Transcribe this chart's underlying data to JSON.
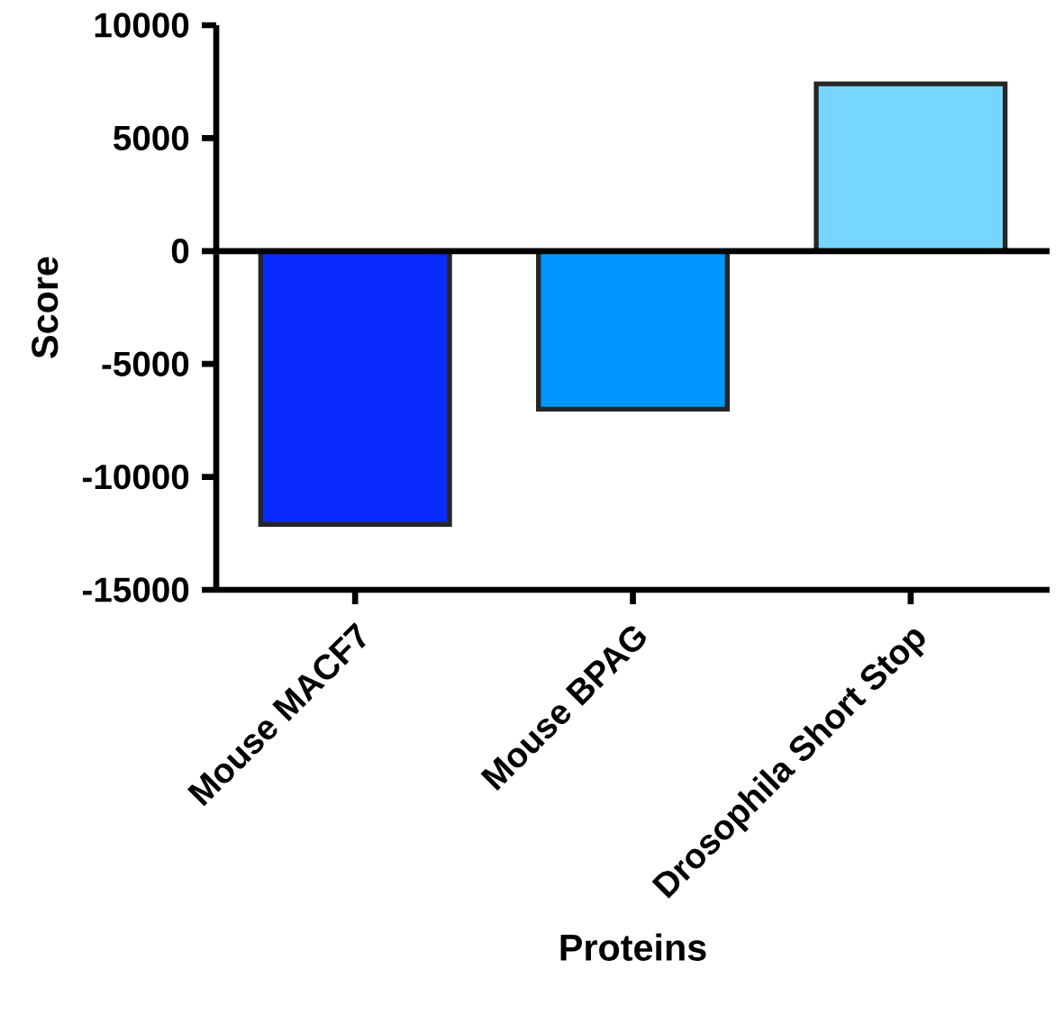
{
  "chart_data": {
    "type": "bar",
    "xlabel": "Proteins",
    "ylabel": "Score",
    "categories": [
      "Mouse MACF7",
      "Mouse BPAG",
      "Drosophila Short Stop"
    ],
    "values": [
      -12100,
      -7000,
      7400
    ],
    "colors": [
      "#0a2bff",
      "#0096ff",
      "#76d6ff"
    ],
    "ylim": [
      -15000,
      10000
    ],
    "yticks": [
      -15000,
      -10000,
      -5000,
      0,
      5000,
      10000
    ],
    "ref_lines": [
      {
        "axis": "y",
        "value": 0
      }
    ],
    "grid": false
  }
}
